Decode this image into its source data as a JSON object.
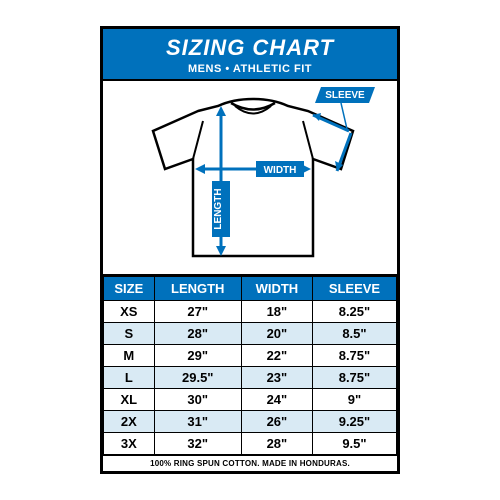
{
  "colors": {
    "accent": "#0071bc",
    "alt_row": "#d9eaf4",
    "border": "#000000",
    "bg": "#ffffff",
    "text": "#000000",
    "header_text": "#ffffff"
  },
  "header": {
    "title": "SIZING CHART",
    "subtitle": "MENS • ATHLETIC FIT"
  },
  "diagram": {
    "labels": {
      "length": "LENGTH",
      "width": "WIDTH",
      "sleeve": "SLEEVE"
    }
  },
  "table": {
    "columns": [
      "SIZE",
      "LENGTH",
      "WIDTH",
      "SLEEVE"
    ],
    "rows": [
      [
        "XS",
        "27\"",
        "18\"",
        "8.25\""
      ],
      [
        "S",
        "28\"",
        "20\"",
        "8.5\""
      ],
      [
        "M",
        "29\"",
        "22\"",
        "8.75\""
      ],
      [
        "L",
        "29.5\"",
        "23\"",
        "8.75\""
      ],
      [
        "XL",
        "30\"",
        "24\"",
        "9\""
      ],
      [
        "2X",
        "31\"",
        "26\"",
        "9.25\""
      ],
      [
        "3X",
        "32\"",
        "28\"",
        "9.5\""
      ]
    ],
    "alt_row_start": 1
  },
  "footer": {
    "text": "100% RING SPUN COTTON.  MADE IN HONDURAS."
  }
}
